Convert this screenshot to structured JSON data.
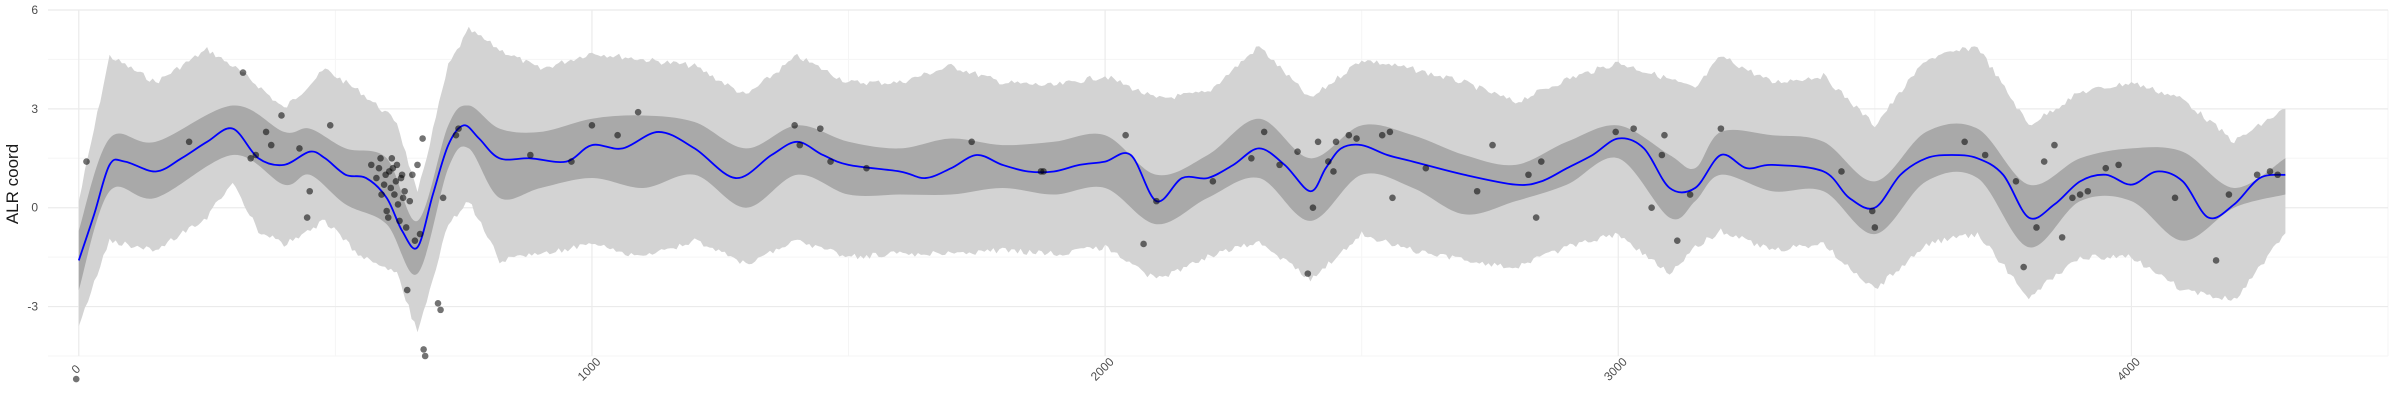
{
  "chart_data": {
    "type": "line",
    "title": "",
    "xlabel": "",
    "ylabel": "ALR coord",
    "xlim": [
      -60,
      4500
    ],
    "ylim": [
      -4.5,
      6
    ],
    "x_ticks": [
      0,
      1000,
      2000,
      3000,
      4000
    ],
    "x_tick_labels": [
      "0",
      "1000",
      "2000",
      "3000",
      "4000"
    ],
    "y_ticks": [
      -3,
      0,
      3,
      6
    ],
    "y_tick_labels": [
      "-3",
      "0",
      "3",
      "6"
    ],
    "grid": true,
    "legend": "none",
    "colors": {
      "mean_line": "#0000ff",
      "inner_band": "#a9a9a9",
      "outer_band": "#d3d3d3",
      "points": "#000000",
      "grid_major": "#ebebeb",
      "grid_minor": "#f5f5f5"
    },
    "mean_curve": {
      "x": [
        0,
        30,
        60,
        90,
        150,
        200,
        250,
        300,
        350,
        400,
        450,
        480,
        520,
        560,
        600,
        630,
        660,
        690,
        720,
        750,
        780,
        820,
        880,
        950,
        1000,
        1060,
        1130,
        1200,
        1280,
        1350,
        1400,
        1450,
        1500,
        1600,
        1650,
        1700,
        1750,
        1800,
        1850,
        1900,
        1950,
        2000,
        2050,
        2100,
        2150,
        2200,
        2250,
        2300,
        2350,
        2400,
        2430,
        2460,
        2500,
        2550,
        2600,
        2700,
        2800,
        2850,
        2900,
        2950,
        3000,
        3050,
        3100,
        3150,
        3200,
        3250,
        3300,
        3400,
        3450,
        3500,
        3550,
        3600,
        3650,
        3700,
        3750,
        3800,
        3850,
        3900,
        3950,
        4000,
        4050,
        4100,
        4150,
        4200,
        4250,
        4300
      ],
      "y": [
        -1.6,
        -0.2,
        1.3,
        1.4,
        1.1,
        1.5,
        2.0,
        2.4,
        1.5,
        1.3,
        1.7,
        1.5,
        1.0,
        0.9,
        0.3,
        -0.7,
        -1.2,
        0.4,
        1.9,
        2.5,
        2.1,
        1.5,
        1.5,
        1.4,
        1.9,
        1.8,
        2.3,
        1.8,
        0.9,
        1.6,
        2.0,
        1.6,
        1.3,
        1.1,
        0.9,
        1.2,
        1.6,
        1.3,
        1.1,
        1.1,
        1.3,
        1.4,
        1.6,
        0.2,
        0.9,
        0.9,
        1.3,
        1.8,
        1.3,
        0.5,
        1.2,
        1.8,
        1.9,
        1.6,
        1.4,
        1.0,
        0.7,
        0.8,
        1.2,
        1.6,
        2.1,
        1.8,
        0.6,
        0.6,
        1.6,
        1.2,
        1.3,
        1.1,
        0.3,
        0.0,
        1.0,
        1.5,
        1.6,
        1.5,
        1.0,
        -0.3,
        0.1,
        0.8,
        1.0,
        0.7,
        1.1,
        0.8,
        -0.3,
        0.1,
        0.9,
        1.0
      ]
    },
    "inner_band": {
      "x": [
        0,
        60,
        150,
        300,
        400,
        450,
        520,
        600,
        660,
        720,
        760,
        820,
        900,
        1000,
        1100,
        1200,
        1300,
        1400,
        1500,
        1600,
        1700,
        1800,
        1900,
        2000,
        2100,
        2200,
        2300,
        2400,
        2500,
        2600,
        2700,
        2800,
        2900,
        3000,
        3100,
        3150,
        3200,
        3300,
        3400,
        3500,
        3600,
        3700,
        3800,
        3900,
        4000,
        4100,
        4200,
        4300
      ],
      "lower": [
        -2.5,
        0.5,
        0.3,
        1.6,
        0.7,
        1.0,
        0.1,
        -0.5,
        -2.0,
        1.2,
        1.8,
        0.3,
        0.6,
        0.9,
        0.6,
        1.0,
        0.0,
        1.0,
        0.4,
        0.4,
        0.4,
        0.6,
        0.4,
        0.6,
        -0.5,
        0.3,
        0.9,
        -0.4,
        1.0,
        0.6,
        -0.2,
        0.2,
        0.7,
        1.5,
        -0.3,
        0.2,
        1.0,
        0.5,
        0.5,
        -0.8,
        0.8,
        0.9,
        -1.2,
        0.2,
        0.2,
        -1.0,
        0.0,
        0.4
      ],
      "upper": [
        -0.7,
        2.1,
        2.0,
        3.1,
        2.3,
        2.4,
        1.8,
        1.5,
        -0.4,
        2.5,
        3.1,
        2.4,
        2.3,
        2.7,
        2.8,
        2.6,
        1.8,
        2.5,
        2.0,
        1.8,
        2.1,
        1.9,
        2.0,
        2.2,
        1.0,
        1.6,
        2.7,
        1.5,
        2.5,
        2.2,
        1.6,
        1.3,
        2.0,
        2.5,
        1.6,
        1.2,
        2.3,
        2.2,
        2.0,
        0.8,
        2.3,
        2.4,
        0.7,
        1.5,
        1.8,
        1.7,
        0.6,
        1.5
      ]
    },
    "outer_band": {
      "x": [
        0,
        60,
        150,
        250,
        300,
        350,
        400,
        480,
        550,
        620,
        660,
        720,
        760,
        820,
        900,
        1000,
        1100,
        1200,
        1300,
        1400,
        1500,
        1600,
        1700,
        1800,
        1900,
        2000,
        2100,
        2200,
        2300,
        2400,
        2500,
        2600,
        2700,
        2800,
        2900,
        3000,
        3100,
        3150,
        3200,
        3300,
        3400,
        3500,
        3600,
        3700,
        3800,
        3900,
        4000,
        4100,
        4200,
        4300
      ],
      "lower": [
        -3.6,
        -1.0,
        -1.3,
        -0.3,
        0.8,
        -0.7,
        -1.1,
        -0.4,
        -1.5,
        -2.0,
        -3.8,
        -0.5,
        0.2,
        -1.6,
        -1.4,
        -1.1,
        -1.5,
        -1.0,
        -1.7,
        -1.0,
        -1.5,
        -1.4,
        -1.4,
        -1.3,
        -1.4,
        -1.2,
        -2.2,
        -1.5,
        -1.0,
        -2.2,
        -0.8,
        -1.3,
        -1.6,
        -1.8,
        -1.2,
        -0.8,
        -2.0,
        -1.2,
        -0.7,
        -1.3,
        -1.1,
        -2.5,
        -1.1,
        -0.8,
        -2.7,
        -1.5,
        -1.5,
        -2.5,
        -2.8,
        -0.8
      ],
      "upper": [
        0.2,
        4.6,
        3.8,
        4.8,
        4.3,
        3.7,
        3.0,
        4.2,
        3.5,
        2.6,
        0.4,
        4.3,
        5.4,
        4.8,
        4.2,
        4.7,
        4.5,
        4.3,
        3.4,
        4.6,
        3.8,
        3.8,
        4.3,
        3.8,
        3.7,
        4.0,
        3.3,
        3.5,
        4.9,
        3.3,
        4.5,
        4.2,
        3.8,
        3.2,
        3.9,
        4.4,
        3.9,
        3.6,
        4.6,
        3.8,
        4.0,
        2.5,
        4.5,
        4.9,
        2.5,
        3.5,
        3.8,
        3.3,
        2.0,
        3.0
      ]
    },
    "points": [
      [
        -5,
        -5.2
      ],
      [
        15,
        1.4
      ],
      [
        215,
        2.0
      ],
      [
        320,
        4.1
      ],
      [
        335,
        1.5
      ],
      [
        345,
        1.6
      ],
      [
        365,
        2.3
      ],
      [
        375,
        1.9
      ],
      [
        395,
        2.8
      ],
      [
        430,
        1.8
      ],
      [
        450,
        0.5
      ],
      [
        445,
        -0.3
      ],
      [
        490,
        2.5
      ],
      [
        570,
        1.3
      ],
      [
        580,
        0.9
      ],
      [
        585,
        1.2
      ],
      [
        588,
        1.5
      ],
      [
        590,
        0.4
      ],
      [
        595,
        0.7
      ],
      [
        598,
        1.0
      ],
      [
        600,
        -0.1
      ],
      [
        603,
        -0.3
      ],
      [
        605,
        1.1
      ],
      [
        608,
        0.6
      ],
      [
        610,
        1.5
      ],
      [
        612,
        1.2
      ],
      [
        615,
        0.4
      ],
      [
        618,
        0.8
      ],
      [
        620,
        1.3
      ],
      [
        622,
        0.1
      ],
      [
        625,
        -0.4
      ],
      [
        628,
        0.9
      ],
      [
        630,
        1.0
      ],
      [
        632,
        0.3
      ],
      [
        635,
        0.5
      ],
      [
        638,
        -0.6
      ],
      [
        640,
        -2.5
      ],
      [
        645,
        0.2
      ],
      [
        650,
        1.0
      ],
      [
        655,
        -1.0
      ],
      [
        660,
        1.3
      ],
      [
        665,
        -0.8
      ],
      [
        672,
        -4.3
      ],
      [
        675,
        -4.5
      ],
      [
        670,
        2.1
      ],
      [
        700,
        -2.9
      ],
      [
        705,
        -3.1
      ],
      [
        710,
        0.3
      ],
      [
        735,
        2.2
      ],
      [
        740,
        2.4
      ],
      [
        880,
        1.6
      ],
      [
        960,
        1.4
      ],
      [
        1000,
        2.5
      ],
      [
        1050,
        2.2
      ],
      [
        1090,
        2.9
      ],
      [
        1395,
        2.5
      ],
      [
        1405,
        1.9
      ],
      [
        1445,
        2.4
      ],
      [
        1465,
        1.4
      ],
      [
        1535,
        1.2
      ],
      [
        1740,
        2.0
      ],
      [
        1875,
        1.1
      ],
      [
        1880,
        1.1
      ],
      [
        2040,
        2.2
      ],
      [
        2075,
        -1.1
      ],
      [
        2100,
        0.2
      ],
      [
        2210,
        0.8
      ],
      [
        2285,
        1.5
      ],
      [
        2310,
        2.3
      ],
      [
        2340,
        1.3
      ],
      [
        2375,
        1.7
      ],
      [
        2395,
        -2.0
      ],
      [
        2405,
        0.0
      ],
      [
        2415,
        2.0
      ],
      [
        2435,
        1.4
      ],
      [
        2445,
        1.1
      ],
      [
        2450,
        2.0
      ],
      [
        2475,
        2.2
      ],
      [
        2490,
        2.1
      ],
      [
        2540,
        2.2
      ],
      [
        2555,
        2.3
      ],
      [
        2560,
        0.3
      ],
      [
        2625,
        1.2
      ],
      [
        2725,
        0.5
      ],
      [
        2755,
        1.9
      ],
      [
        2825,
        1.0
      ],
      [
        2840,
        -0.3
      ],
      [
        2850,
        1.4
      ],
      [
        2995,
        2.3
      ],
      [
        3030,
        2.4
      ],
      [
        3065,
        0.0
      ],
      [
        3085,
        1.6
      ],
      [
        3090,
        2.2
      ],
      [
        3115,
        -1.0
      ],
      [
        3140,
        0.4
      ],
      [
        3200,
        2.4
      ],
      [
        3435,
        1.1
      ],
      [
        3500,
        -0.6
      ],
      [
        3495,
        -0.1
      ],
      [
        3675,
        2.0
      ],
      [
        3715,
        1.6
      ],
      [
        3775,
        0.8
      ],
      [
        3790,
        -1.8
      ],
      [
        3815,
        -0.6
      ],
      [
        3830,
        1.4
      ],
      [
        3850,
        1.9
      ],
      [
        3865,
        -0.9
      ],
      [
        3885,
        0.3
      ],
      [
        3900,
        0.4
      ],
      [
        3915,
        0.5
      ],
      [
        3950,
        1.2
      ],
      [
        3975,
        1.3
      ],
      [
        4085,
        0.3
      ],
      [
        4165,
        -1.6
      ],
      [
        4190,
        0.4
      ],
      [
        4245,
        1.0
      ],
      [
        4270,
        1.1
      ],
      [
        4285,
        1.0
      ]
    ]
  }
}
